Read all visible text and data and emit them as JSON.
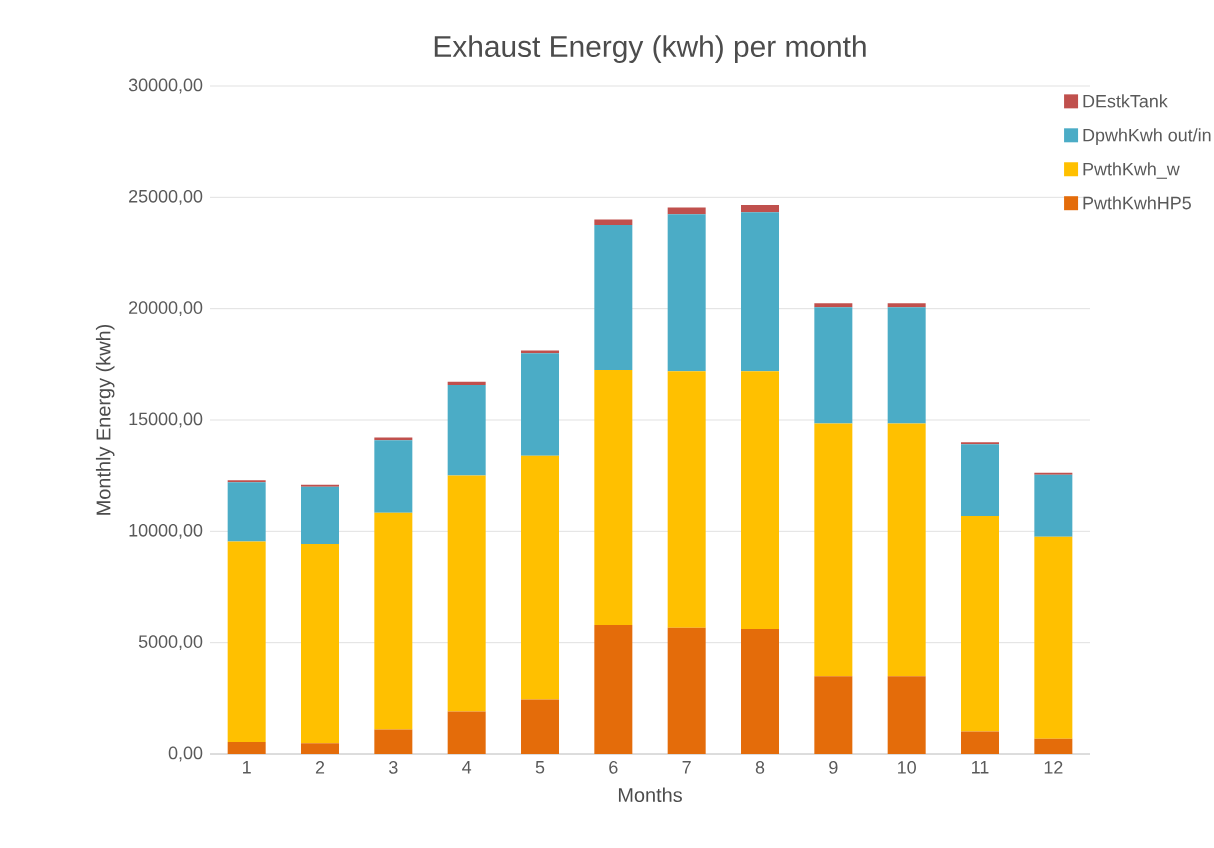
{
  "chart_data": {
    "type": "bar",
    "stacked": true,
    "title": "Exhaust Energy (kwh) per month",
    "xlabel": "Months",
    "ylabel": "Monthly Energy (kwh)",
    "categories": [
      "1",
      "2",
      "3",
      "4",
      "5",
      "6",
      "7",
      "8",
      "9",
      "10",
      "11",
      "12"
    ],
    "series": [
      {
        "name": "PwthKwhHP5",
        "color": "#e46c0a",
        "values": [
          540,
          480,
          1100,
          1910,
          2450,
          5790,
          5670,
          5610,
          3490,
          3490,
          1010,
          690
        ]
      },
      {
        "name": "PwthKwh_w",
        "color": "#ffc000",
        "values": [
          9000,
          8950,
          9740,
          10600,
          10950,
          11460,
          11520,
          11580,
          11350,
          11350,
          9680,
          9070
        ]
      },
      {
        "name": "DpwhKwh out/in",
        "color": "#4bacc6",
        "values": [
          2660,
          2570,
          3250,
          4060,
          4600,
          6510,
          7050,
          7140,
          5220,
          5220,
          3220,
          2780
        ]
      },
      {
        "name": "DEstkTank",
        "color": "#c0504d",
        "values": [
          90,
          90,
          120,
          150,
          120,
          240,
          300,
          330,
          180,
          180,
          90,
          90
        ]
      }
    ],
    "ylim": [
      0,
      30000
    ],
    "yticks": [
      {
        "value": 0,
        "label": "0,00"
      },
      {
        "value": 5000,
        "label": "5000,00"
      },
      {
        "value": 10000,
        "label": "10000,00"
      },
      {
        "value": 15000,
        "label": "15000,00"
      },
      {
        "value": 20000,
        "label": "20000,00"
      },
      {
        "value": 25000,
        "label": "25000,00"
      },
      {
        "value": 30000,
        "label": "30000,00"
      }
    ],
    "grid": "y",
    "legend": "top right"
  }
}
